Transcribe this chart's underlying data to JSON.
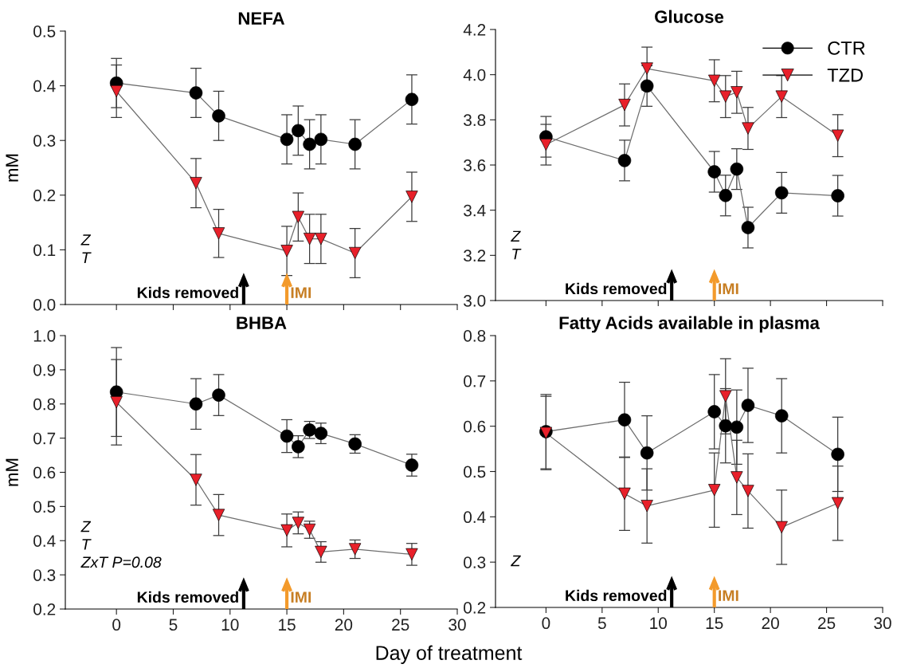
{
  "chart_data": [
    {
      "type": "line",
      "title": "NEFA",
      "ylabel": "mM",
      "x": [
        0,
        7,
        9,
        15,
        16,
        17,
        18,
        21,
        26
      ],
      "xlim": [
        -4.5,
        30
      ],
      "xticks": [
        0,
        5,
        10,
        15,
        20,
        25,
        30
      ],
      "ylim": [
        0,
        0.5
      ],
      "yticks": [
        {
          "value": 0,
          "label": "0.0"
        },
        0.1,
        0.2,
        0.3,
        0.4,
        0.5
      ],
      "tick_labels": "y",
      "grid": false,
      "line_style": "solid",
      "series": [
        {
          "color": "#000000",
          "marker": "circle",
          "values": [
            0.405,
            0.387,
            0.345,
            0.302,
            0.318,
            0.293,
            0.302,
            0.293,
            0.375
          ],
          "errors": [
            0.045,
            0.045,
            0.045,
            0.045,
            0.045,
            0.045,
            0.045,
            0.045,
            0.045
          ]
        },
        {
          "color": "#e8202a",
          "marker": "triangle",
          "values": [
            0.39,
            0.222,
            0.13,
            0.098,
            0.16,
            0.12,
            0.12,
            0.094,
            0.197
          ],
          "errors": [
            0.048,
            0.045,
            0.044,
            0.045,
            0.044,
            0.045,
            0.045,
            0.045,
            0.045
          ]
        }
      ],
      "annotations": [
        "Z\nT"
      ],
      "ref_lines": [
        {
          "axis": "x",
          "value": 11.2,
          "label": "Kids removed",
          "color": "#000000"
        },
        {
          "axis": "x",
          "value": 15,
          "label": "IMI",
          "color": "#f39a2b"
        }
      ]
    },
    {
      "type": "line",
      "title": "Glucose",
      "x": [
        0,
        7,
        9,
        15,
        16,
        17,
        18,
        21,
        26
      ],
      "xlim": [
        -4.5,
        30
      ],
      "xticks": [
        0,
        5,
        10,
        15,
        20,
        25,
        30
      ],
      "ylim": [
        3.0,
        4.2
      ],
      "yticks": [
        {
          "value": 3.0,
          "label": "3.0"
        },
        3.2,
        3.4,
        3.6,
        3.8,
        {
          "value": 4.0,
          "label": "4.0"
        },
        4.2
      ],
      "tick_labels": "y",
      "grid": false,
      "legend": "top right",
      "line_style": "solid",
      "series": [
        {
          "name": "CTR",
          "color": "#000000",
          "marker": "circle",
          "values": [
            3.725,
            3.62,
            3.95,
            3.57,
            3.465,
            3.582,
            3.323,
            3.477,
            3.464
          ],
          "errors": [
            0.09,
            0.09,
            0.09,
            0.09,
            0.09,
            0.09,
            0.09,
            0.09,
            0.09
          ]
        },
        {
          "name": "TZD",
          "color": "#e8202a",
          "marker": "triangle",
          "values": [
            3.69,
            3.866,
            4.027,
            3.973,
            3.903,
            3.922,
            3.762,
            3.903,
            3.73
          ],
          "errors": [
            0.09,
            0.093,
            0.095,
            0.093,
            0.093,
            0.093,
            0.093,
            0.093,
            0.093
          ]
        }
      ],
      "annotations": [
        "Z\nT"
      ],
      "ref_lines": [
        {
          "axis": "x",
          "value": 11.2,
          "label": "Kids removed",
          "color": "#000000"
        },
        {
          "axis": "x",
          "value": 15,
          "label": "IMI",
          "color": "#f39a2b"
        }
      ]
    },
    {
      "type": "line",
      "title": "BHBA",
      "ylabel": "mM",
      "xlabel": "Day of treatment",
      "x": [
        0,
        7,
        9,
        15,
        16,
        17,
        18,
        21,
        26
      ],
      "xlim": [
        -4.5,
        30
      ],
      "xticks": [
        0,
        5,
        10,
        15,
        20,
        25,
        30
      ],
      "ylim": [
        0.2,
        1.0
      ],
      "yticks": [
        0.2,
        0.3,
        0.4,
        0.5,
        0.6,
        0.7,
        0.8,
        0.9,
        {
          "value": 1.0,
          "label": "1.0"
        }
      ],
      "grid": false,
      "line_style": "solid",
      "series": [
        {
          "color": "#000000",
          "marker": "circle",
          "values": [
            0.835,
            0.8,
            0.826,
            0.706,
            0.675,
            0.724,
            0.714,
            0.683,
            0.621
          ],
          "errors": [
            0.13,
            0.074,
            0.06,
            0.048,
            0.032,
            0.025,
            0.03,
            0.027,
            0.032
          ]
        },
        {
          "color": "#e8202a",
          "marker": "triangle",
          "values": [
            0.805,
            0.578,
            0.475,
            0.43,
            0.452,
            0.432,
            0.367,
            0.375,
            0.36
          ],
          "errors": [
            0.125,
            0.074,
            0.06,
            0.048,
            0.032,
            0.025,
            0.03,
            0.027,
            0.032
          ]
        }
      ],
      "annotations": [
        "Z\nT\nZxT P=0.08"
      ],
      "ref_lines": [
        {
          "axis": "x",
          "value": 11.2,
          "label": "Kids removed",
          "color": "#000000"
        },
        {
          "axis": "x",
          "value": 15,
          "label": "IMI",
          "color": "#f39a2b"
        }
      ]
    },
    {
      "type": "line",
      "title": "Fatty Acids available in plasma",
      "x": [
        0,
        7,
        9,
        15,
        16,
        17,
        18,
        21,
        26
      ],
      "xlim": [
        -4.5,
        30
      ],
      "xticks": [
        0,
        5,
        10,
        15,
        20,
        25,
        30
      ],
      "ylim": [
        0.2,
        0.8
      ],
      "yticks": [
        0.2,
        0.3,
        0.4,
        0.5,
        0.6,
        0.7,
        0.8
      ],
      "grid": false,
      "line_style": "solid",
      "series": [
        {
          "color": "#000000",
          "marker": "circle",
          "values": [
            0.588,
            0.614,
            0.541,
            0.632,
            0.601,
            0.598,
            0.646,
            0.623,
            0.538
          ],
          "errors": [
            0.082,
            0.083,
            0.082,
            0.082,
            0.082,
            0.082,
            0.082,
            0.082,
            0.082
          ]
        },
        {
          "color": "#e8202a",
          "marker": "triangle",
          "values": [
            0.585,
            0.451,
            0.424,
            0.459,
            0.666,
            0.487,
            0.457,
            0.377,
            0.43
          ],
          "errors": [
            0.081,
            0.081,
            0.082,
            0.082,
            0.083,
            0.082,
            0.082,
            0.082,
            0.082
          ]
        }
      ],
      "annotations": [
        "Z"
      ],
      "ref_lines": [
        {
          "axis": "x",
          "value": 11.2,
          "label": "Kids removed",
          "color": "#000000"
        },
        {
          "axis": "x",
          "value": 15,
          "label": "IMI",
          "color": "#f39a2b"
        }
      ]
    }
  ]
}
